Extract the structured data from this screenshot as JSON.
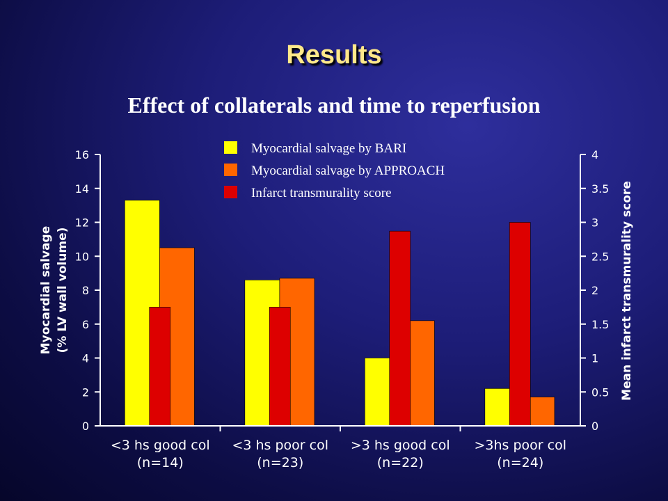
{
  "slide": {
    "title": "Results"
  },
  "chart_data": {
    "type": "bar",
    "title": "Effect of collaterals and time to reperfusion",
    "categories": [
      "<3 hs good col",
      "<3 hs poor col",
      ">3 hs good col",
      ">3hs poor col"
    ],
    "category_sublabels": [
      "(n=14)",
      "(n=23)",
      "(n=22)",
      "(n=24)"
    ],
    "series": [
      {
        "name": "Myocardial salvage by BARI",
        "axis": "left",
        "color": "#ffff00",
        "values": [
          13.3,
          8.6,
          4.0,
          2.2
        ]
      },
      {
        "name": "Myocardial salvage by APPROACH",
        "axis": "left",
        "color": "#ff6600",
        "values": [
          10.5,
          8.7,
          6.2,
          1.7
        ]
      },
      {
        "name": "Infarct transmurality score",
        "axis": "right",
        "color": "#dd0000",
        "values": [
          1.75,
          1.75,
          2.87,
          3.0
        ]
      }
    ],
    "ylabel": [
      "Myocardial salvage",
      "(% LV wall volume)"
    ],
    "ylim": [
      0,
      16
    ],
    "yticks": [
      "0",
      "2",
      "4",
      "6",
      "8",
      "10",
      "12",
      "14",
      "16"
    ],
    "y2label": "Mean infarct transmurality score",
    "y2lim": [
      0,
      4
    ],
    "y2ticks": [
      "0",
      "0.5",
      "1",
      "1.5",
      "2",
      "2.5",
      "3",
      "3.5",
      "4"
    ],
    "legend_position": "top",
    "grid": false
  }
}
